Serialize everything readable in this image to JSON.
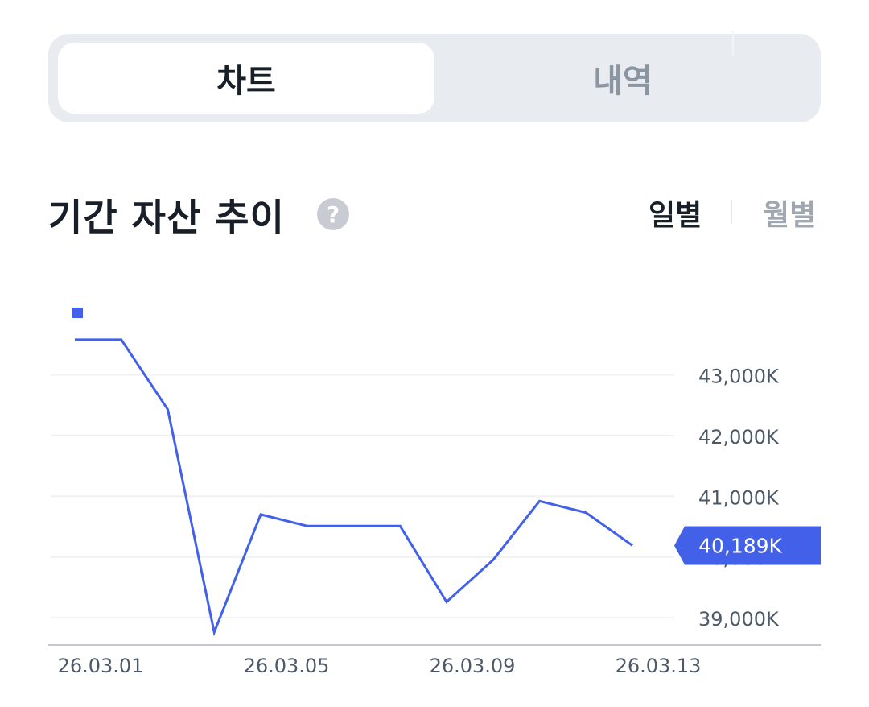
{
  "tabs": {
    "chart_label": "차트",
    "history_label": "내역"
  },
  "section": {
    "title": "기간 자산 추이",
    "help_icon": "?",
    "period_daily": "일별",
    "period_monthly": "월별"
  },
  "chart_data": {
    "type": "line",
    "y_unit": "K",
    "ylim": [
      38550,
      44400
    ],
    "y_ticks": [
      39000,
      40000,
      41000,
      42000,
      43000
    ],
    "y_tick_labels": [
      "39,000K",
      "40,000K",
      "41,000K",
      "42,000K",
      "43,000K"
    ],
    "x": [
      "26.03.01",
      "26.03.02",
      "26.03.03",
      "26.03.04",
      "26.03.05",
      "26.03.06",
      "26.03.07",
      "26.03.08",
      "26.03.09",
      "26.03.10",
      "26.03.11",
      "26.03.12",
      "26.03.13"
    ],
    "x_tick_labels": [
      "26.03.01",
      "26.03.05",
      "26.03.09",
      "26.03.13"
    ],
    "series": [
      {
        "values": [
          43580,
          43580,
          42430,
          38760,
          40700,
          40510,
          40510,
          40510,
          39260,
          39950,
          40920,
          40730,
          40189
        ]
      }
    ],
    "current_value_label": "40,189K",
    "colors": {
      "line": "#4261e8",
      "grid": "#eef0f3",
      "axis": "#c4c8cd",
      "tick_text": "#4e5968"
    },
    "grid": true,
    "legend": "top-left"
  }
}
